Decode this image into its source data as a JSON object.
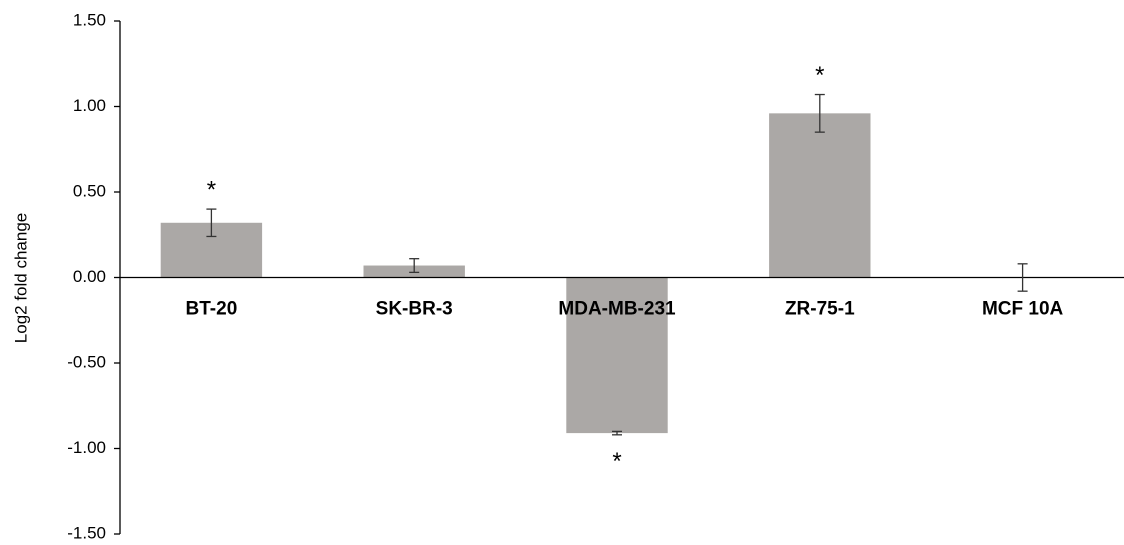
{
  "chart_data": {
    "type": "bar",
    "y_label": "Log2 fold change",
    "categories": [
      "BT-20",
      "SK-BR-3",
      "MDA-MB-231",
      "ZR-75-1",
      "MCF 10A"
    ],
    "values": [
      0.32,
      0.07,
      -0.91,
      0.96,
      0
    ],
    "errors": [
      0.08,
      0.04,
      0.01,
      0.11,
      0.08
    ],
    "significance": [
      "*",
      null,
      "*",
      "*",
      null
    ],
    "color": "#aba8a6",
    "ylim": [
      -1.5,
      1.5
    ],
    "yticks": [
      {
        "value": -1.5,
        "label": "-1.50"
      },
      {
        "value": -1,
        "label": "-1.00"
      },
      {
        "value": -0.5,
        "label": "-0.50"
      },
      {
        "value": 0,
        "label": "0.00"
      },
      {
        "value": 0.5,
        "label": "0.50"
      },
      {
        "value": 1,
        "label": "1.00"
      },
      {
        "value": 1.5,
        "label": "1.50"
      }
    ],
    "grid": false
  }
}
